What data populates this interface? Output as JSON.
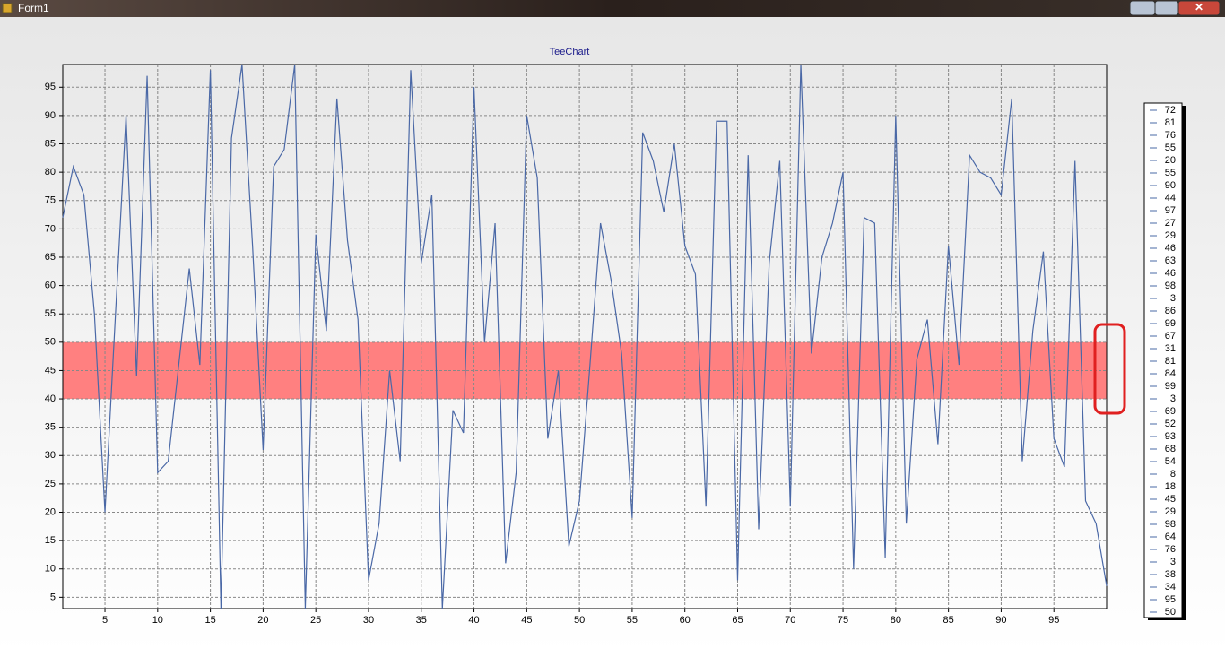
{
  "window": {
    "title": "Form1"
  },
  "chart_data": {
    "type": "line",
    "title": "TeeChart",
    "x": [
      1,
      2,
      3,
      4,
      5,
      6,
      7,
      8,
      9,
      10,
      11,
      12,
      13,
      14,
      15,
      16,
      17,
      18,
      19,
      20,
      21,
      22,
      23,
      24,
      25,
      26,
      27,
      28,
      29,
      30,
      31,
      32,
      33,
      34,
      35,
      36,
      37,
      38,
      39,
      40,
      41,
      42,
      43,
      44,
      45,
      46,
      47,
      48,
      49,
      50,
      51,
      52,
      53,
      54,
      55,
      56,
      57,
      58,
      59,
      60,
      61,
      62,
      63,
      64,
      65,
      66,
      67,
      68,
      69,
      70,
      71,
      72,
      73,
      74,
      75,
      76,
      77,
      78,
      79,
      80,
      81,
      82,
      83,
      84,
      85,
      86,
      87,
      88,
      89,
      90,
      91,
      92,
      93,
      94,
      95,
      96,
      97,
      98,
      99,
      100
    ],
    "series": [
      {
        "color": "#4a68a6",
        "values": [
          72,
          81,
          76,
          55,
          20,
          55,
          90,
          44,
          97,
          27,
          29,
          46,
          63,
          46,
          98,
          3,
          86,
          99,
          67,
          31,
          81,
          84,
          99,
          3,
          69,
          52,
          93,
          68,
          54,
          8,
          18,
          45,
          29,
          98,
          64,
          76,
          3,
          38,
          34,
          95,
          50,
          71,
          11,
          27,
          90,
          79,
          33,
          45,
          14,
          22,
          46,
          71,
          61,
          48,
          19,
          87,
          82,
          73,
          85,
          67,
          62,
          21,
          89,
          89,
          8,
          83,
          17,
          64,
          82,
          21,
          99,
          48,
          65,
          71,
          80,
          10,
          72,
          71,
          12,
          90,
          18,
          47,
          54,
          32,
          67,
          46,
          83,
          80,
          79,
          76,
          93,
          29,
          52,
          66,
          33,
          28,
          82,
          22,
          18,
          7
        ]
      }
    ],
    "legend_count": 41,
    "bands": [
      {
        "from": 40,
        "to": 50,
        "color": "#ff8080"
      }
    ],
    "xlim": [
      1,
      100
    ],
    "ylim": [
      3,
      99
    ],
    "xticks": [
      5,
      10,
      15,
      20,
      25,
      30,
      35,
      40,
      45,
      50,
      55,
      60,
      65,
      70,
      75,
      80,
      85,
      90,
      95
    ],
    "yticks": [
      5,
      10,
      15,
      20,
      25,
      30,
      35,
      40,
      45,
      50,
      55,
      60,
      65,
      70,
      75,
      80,
      85,
      90,
      95
    ],
    "grid": true
  }
}
